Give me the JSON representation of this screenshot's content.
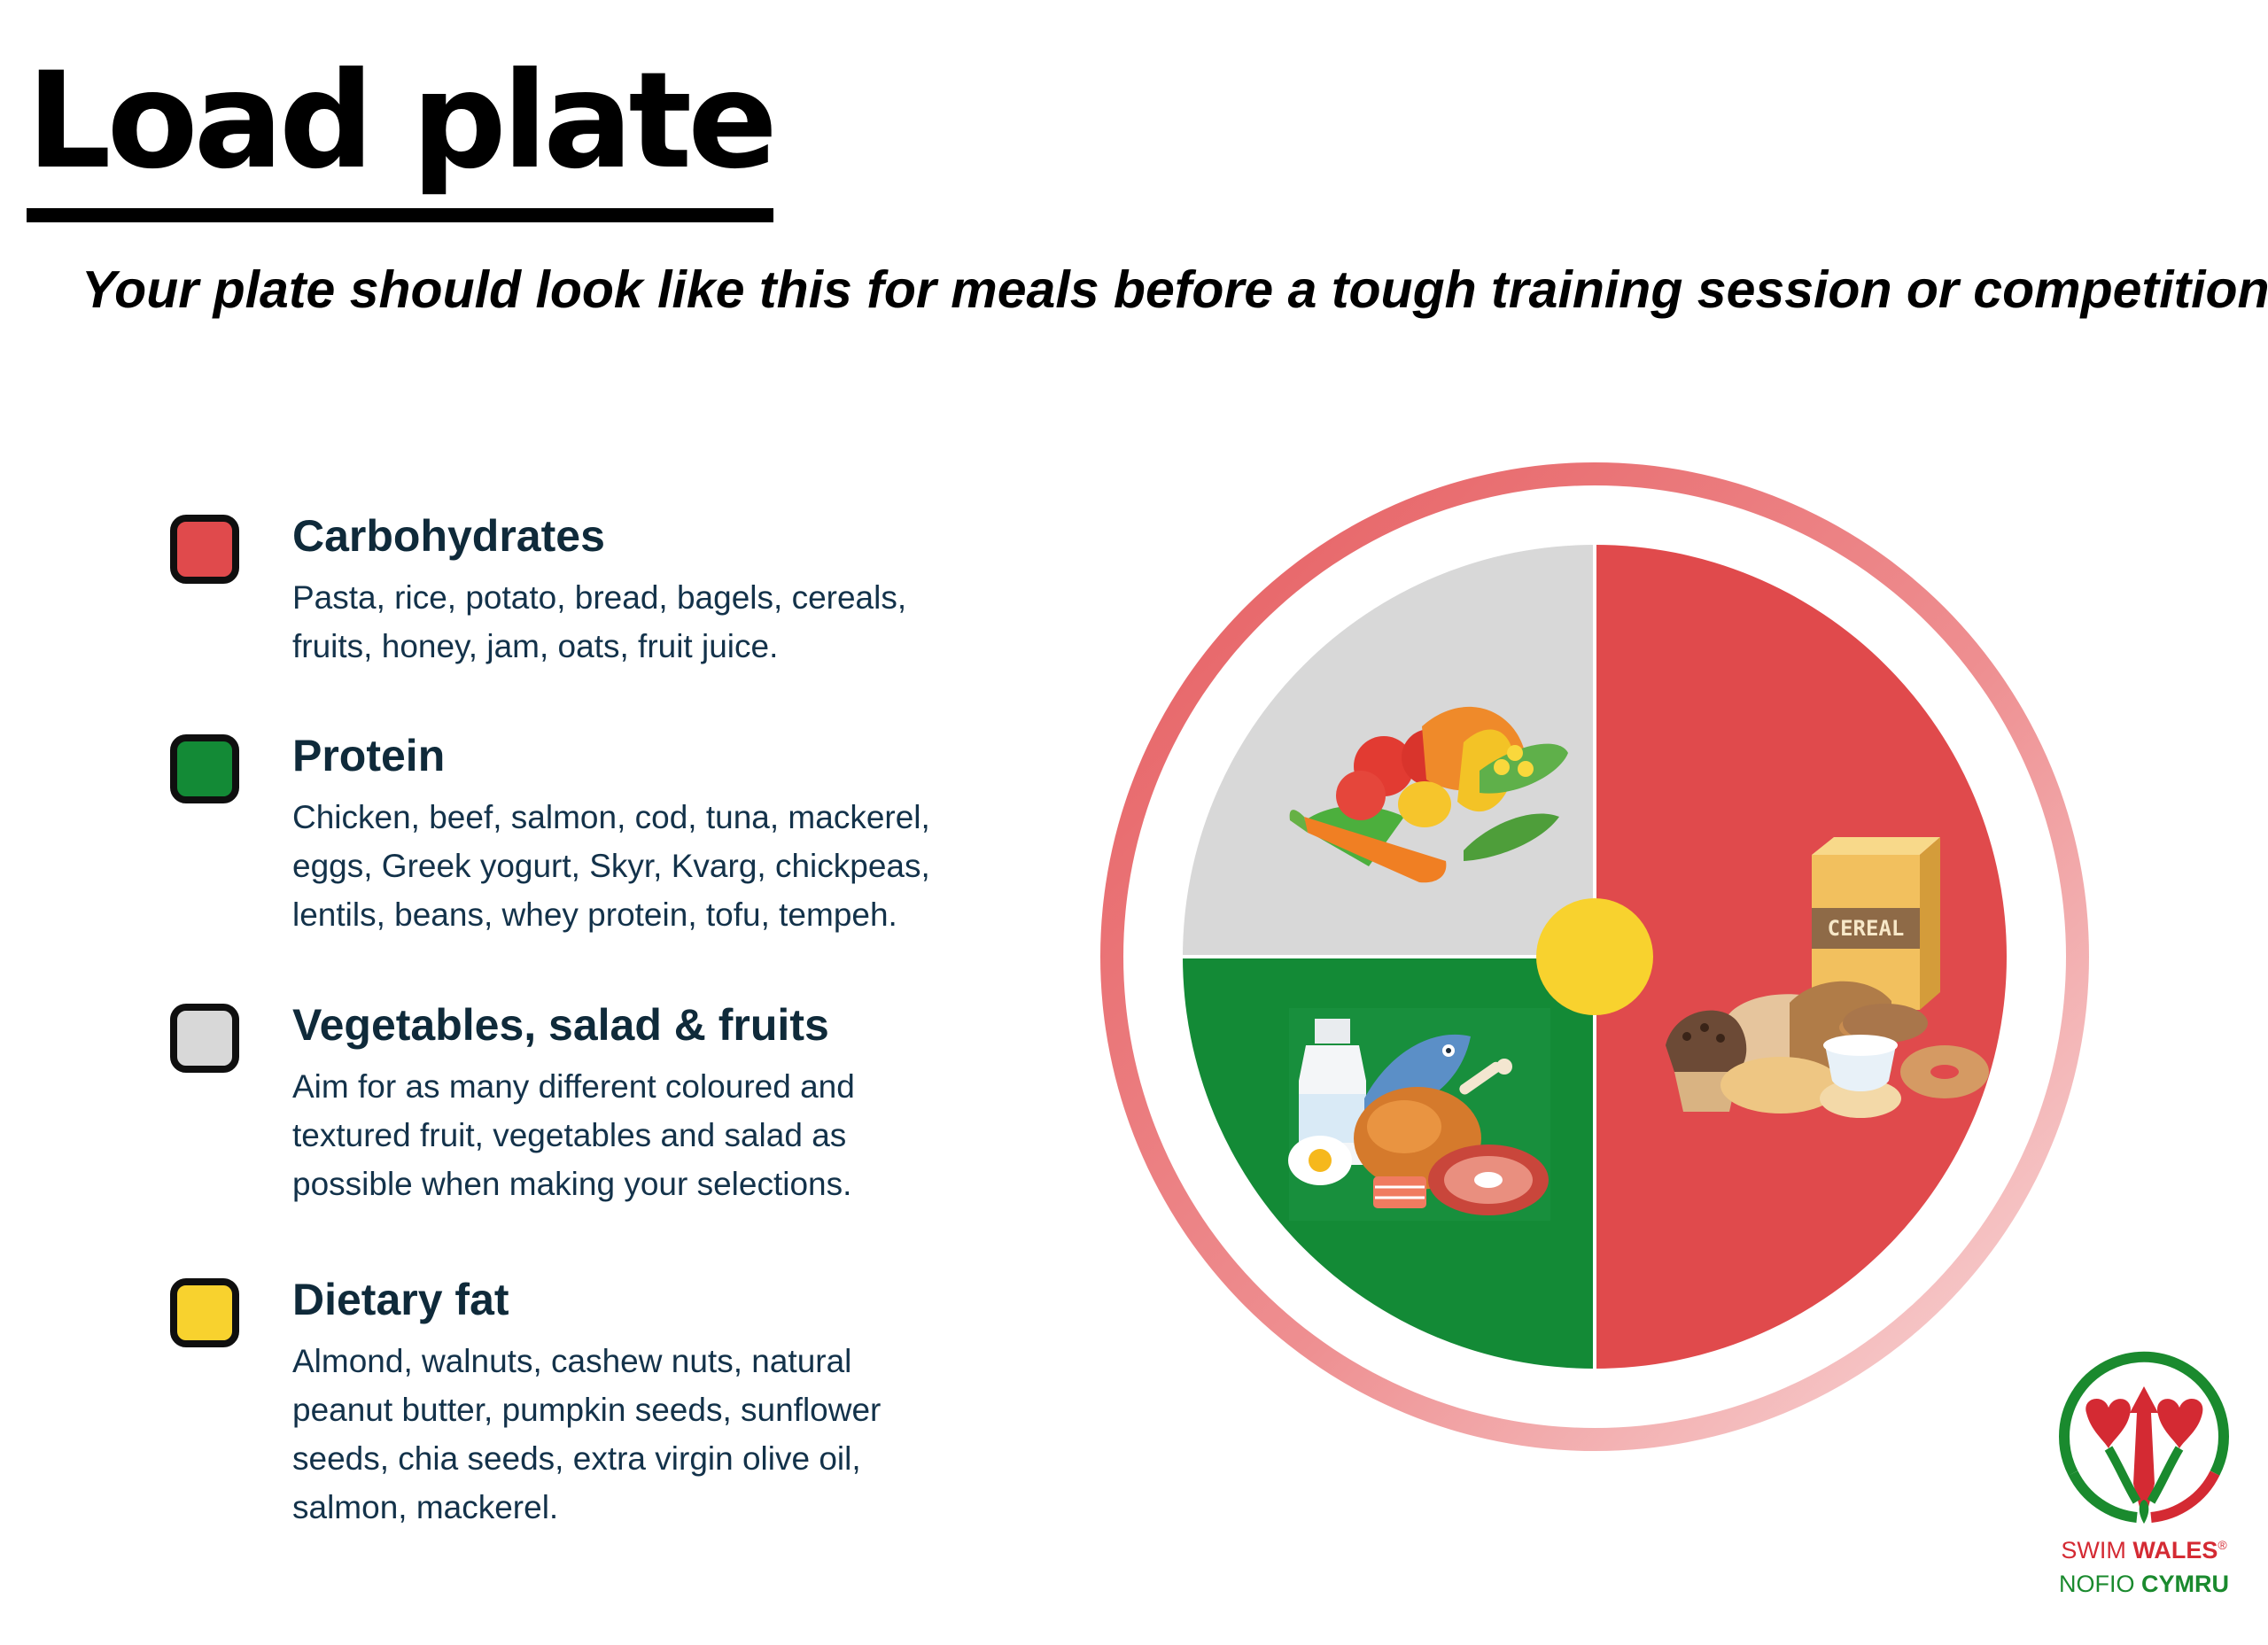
{
  "title": "Load plate",
  "subtitle": "Your plate should look like this for meals before a tough training session or competition.",
  "legend": [
    {
      "title": "Carbohydrates",
      "description": "Pasta, rice, potato, bread, bagels, cereals, fruits, honey, jam, oats, fruit juice.",
      "color": "#e04a4c"
    },
    {
      "title": "Protein",
      "description": "Chicken, beef, salmon, cod, tuna, mackerel, eggs, Greek yogurt, Skyr, Kvarg, chickpeas, lentils, beans, whey protein, tofu, tempeh.",
      "color": "#138a36"
    },
    {
      "title": "Vegetables, salad & fruits",
      "description": "Aim for as many different coloured and textured fruit, vegetables and salad as possible when making your selections.",
      "color": "#d8d8d8"
    },
    {
      "title": "Dietary fat",
      "description": "Almond, walnuts, cashew nuts, natural peanut butter, pumpkin seeds, sunflower seeds, chia seeds, extra virgin olive oil, salmon, mackerel.",
      "color": "#f8d22e"
    }
  ],
  "plate": {
    "portions": [
      {
        "food_group": "Carbohydrates",
        "fraction": 0.5,
        "color": "#e04a4c",
        "icon": "bread-cereal-icon"
      },
      {
        "food_group": "Vegetables, salad & fruits",
        "fraction": 0.25,
        "color": "#d8d8d8",
        "icon": "vegetables-icon"
      },
      {
        "food_group": "Protein",
        "fraction": 0.25,
        "color": "#138a36",
        "icon": "protein-foods-icon"
      }
    ],
    "center": {
      "food_group": "Dietary fat",
      "color": "#f8d22e"
    },
    "rim_color": "#e96e70",
    "cereal_box_label": "CEREAL"
  },
  "logo": {
    "line1_a": "SWIM ",
    "line1_b": "WALES",
    "line1_mark": "®",
    "line2_a": "NOFIO ",
    "line2_b": "CYMRU",
    "icon": "swim-wales-feathers-logo"
  }
}
